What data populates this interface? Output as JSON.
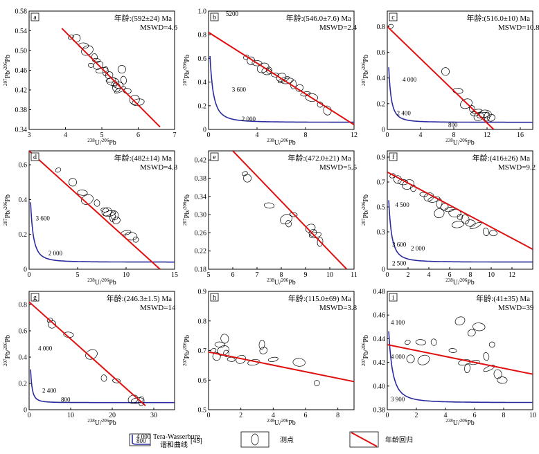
{
  "chart_data": [
    {
      "id": "a",
      "type": "scatter",
      "panel_label": "a",
      "age": "年龄:(592±24) Ma",
      "mswd": "MSWD=4.6",
      "xlim": [
        3,
        7
      ],
      "ylim": [
        0.34,
        0.58
      ],
      "xticks": [
        3,
        4,
        5,
        6,
        7
      ],
      "yticks": [
        0.34,
        0.38,
        0.42,
        0.46,
        0.5,
        0.54,
        0.58
      ],
      "ytick_labels": [
        "0.34",
        "0.38",
        "0.42",
        "0.46",
        "0.50",
        "0.54",
        "0.58"
      ],
      "xlabel": "238U/206Pb",
      "ylabel": "207Pb/206Pb",
      "regression": [
        [
          3.9,
          0.545
        ],
        [
          6.6,
          0.345
        ]
      ],
      "concordia": false,
      "concordia_labels": [],
      "points": [
        [
          4.15,
          0.527
        ],
        [
          4.3,
          0.525
        ],
        [
          4.5,
          0.51
        ],
        [
          4.6,
          0.5
        ],
        [
          4.8,
          0.487
        ],
        [
          4.85,
          0.48
        ],
        [
          4.9,
          0.47
        ],
        [
          5.0,
          0.46
        ],
        [
          5.1,
          0.458
        ],
        [
          5.2,
          0.45
        ],
        [
          5.25,
          0.44
        ],
        [
          5.3,
          0.437
        ],
        [
          5.35,
          0.432
        ],
        [
          5.4,
          0.425
        ],
        [
          5.45,
          0.43
        ],
        [
          5.5,
          0.42
        ],
        [
          5.6,
          0.44
        ],
        [
          5.7,
          0.418
        ],
        [
          5.9,
          0.4
        ],
        [
          6.0,
          0.395
        ],
        [
          4.7,
          0.47
        ],
        [
          5.55,
          0.462
        ]
      ]
    },
    {
      "id": "b",
      "type": "scatter",
      "panel_label": "b",
      "age": "年龄:(546.0±7.6) Ma",
      "mswd": "MSWD=2.4",
      "xlim": [
        0,
        12
      ],
      "ylim": [
        0,
        1.0
      ],
      "xticks": [
        0,
        4,
        8,
        12
      ],
      "yticks": [
        0,
        0.2,
        0.4,
        0.6,
        0.8,
        1.0
      ],
      "ytick_labels": [
        "0",
        "0.2",
        "0.4",
        "0.6",
        "0.8",
        "1.0"
      ],
      "xlabel": "238U/206Pb",
      "ylabel": "207Pb/206Pb",
      "regression": [
        [
          0,
          0.82
        ],
        [
          12,
          0.04
        ]
      ],
      "concordia": true,
      "concordia_labels": [
        [
          "5200",
          1.2,
          0.96
        ],
        [
          "3 600",
          1.7,
          0.32
        ],
        [
          "2 000",
          2.5,
          0.07
        ]
      ],
      "points": [
        [
          3.1,
          0.61
        ],
        [
          3.5,
          0.58
        ],
        [
          4.0,
          0.56
        ],
        [
          4.5,
          0.52
        ],
        [
          5.0,
          0.5
        ],
        [
          5.5,
          0.46
        ],
        [
          6.0,
          0.44
        ],
        [
          6.5,
          0.41
        ],
        [
          7.0,
          0.38
        ],
        [
          7.5,
          0.35
        ],
        [
          8.0,
          0.3
        ],
        [
          8.5,
          0.27
        ],
        [
          9.2,
          0.21
        ],
        [
          9.8,
          0.16
        ],
        [
          4.8,
          0.49
        ],
        [
          6.2,
          0.42
        ]
      ]
    },
    {
      "id": "c",
      "type": "scatter",
      "panel_label": "c",
      "age": "年龄:(516.0±10) Ma",
      "mswd": "MSWD=10.8",
      "xlim": [
        0,
        17.5
      ],
      "ylim": [
        0,
        0.92
      ],
      "xticks": [
        0,
        4,
        8,
        12,
        16
      ],
      "yticks": [
        0,
        0.2,
        0.4,
        0.6,
        0.8
      ],
      "ytick_labels": [
        "0",
        "0.2",
        "0.4",
        "0.6",
        "0.8"
      ],
      "xlabel": "238U/206Pb",
      "ylabel": "207Pb/206Pb",
      "regression": [
        [
          0,
          0.8
        ],
        [
          12.8,
          0.0
        ]
      ],
      "concordia": true,
      "concordia_labels": [
        [
          "4 000",
          1.5,
          0.37
        ],
        [
          "2 400",
          0.8,
          0.11
        ],
        [
          "800",
          7.0,
          0.02
        ]
      ],
      "points": [
        [
          0.4,
          0.8
        ],
        [
          7.0,
          0.45
        ],
        [
          8.5,
          0.3
        ],
        [
          9.5,
          0.2
        ],
        [
          10.2,
          0.16
        ],
        [
          10.5,
          0.12
        ],
        [
          11.0,
          0.1
        ],
        [
          11.5,
          0.11
        ],
        [
          12.0,
          0.1
        ],
        [
          12.5,
          0.09
        ],
        [
          10.8,
          0.14
        ],
        [
          11.8,
          0.12
        ]
      ]
    },
    {
      "id": "d",
      "type": "scatter",
      "panel_label": "d",
      "age": "年龄:(482±14) Ma",
      "mswd": "MSWD=4.8",
      "xlim": [
        0,
        15
      ],
      "ylim": [
        0,
        0.68
      ],
      "xticks": [
        0,
        5,
        10,
        15
      ],
      "yticks": [
        0,
        0.2,
        0.4,
        0.6
      ],
      "ytick_labels": [
        "0",
        "0.2",
        "0.4",
        "0.6"
      ],
      "xlabel": "238U/206Pb",
      "ylabel": "207Pb/206Pb",
      "regression": [
        [
          0,
          0.68
        ],
        [
          13.5,
          0.0
        ]
      ],
      "concordia": true,
      "concordia_labels": [
        [
          "3 600",
          0.4,
          0.28
        ],
        [
          "2 000",
          1.7,
          0.08
        ]
      ],
      "points": [
        [
          3.0,
          0.57
        ],
        [
          4.5,
          0.5
        ],
        [
          5.5,
          0.44
        ],
        [
          6.0,
          0.4
        ],
        [
          7.0,
          0.38
        ],
        [
          7.8,
          0.34
        ],
        [
          8.0,
          0.33
        ],
        [
          8.3,
          0.32
        ],
        [
          8.6,
          0.3
        ],
        [
          9.0,
          0.28
        ],
        [
          10.0,
          0.21
        ],
        [
          10.5,
          0.19
        ],
        [
          11.0,
          0.17
        ],
        [
          8.8,
          0.31
        ]
      ]
    },
    {
      "id": "e",
      "type": "scatter",
      "panel_label": "e",
      "age": "年龄:(472.0±21) Ma",
      "mswd": "MSWD=5.5",
      "xlim": [
        5,
        11
      ],
      "ylim": [
        0.18,
        0.44
      ],
      "xticks": [
        5,
        6,
        7,
        8,
        9,
        10,
        11
      ],
      "yticks": [
        0.18,
        0.22,
        0.26,
        0.3,
        0.34,
        0.38,
        0.42
      ],
      "ytick_labels": [
        "0.18",
        "0.22",
        "0.26",
        "0.30",
        "0.34",
        "0.38",
        "0.42"
      ],
      "xlabel": "238U/206Pb",
      "ylabel": "207Pb/206Pb",
      "regression": [
        [
          6.0,
          0.44
        ],
        [
          10.7,
          0.18
        ]
      ],
      "concordia": false,
      "concordia_labels": [],
      "points": [
        [
          6.5,
          0.39
        ],
        [
          6.6,
          0.38
        ],
        [
          7.5,
          0.32
        ],
        [
          8.2,
          0.29
        ],
        [
          8.3,
          0.28
        ],
        [
          8.5,
          0.3
        ],
        [
          9.2,
          0.27
        ],
        [
          9.4,
          0.255
        ],
        [
          9.6,
          0.24
        ],
        [
          9.3,
          0.26
        ]
      ]
    },
    {
      "id": "f",
      "type": "scatter",
      "panel_label": "f",
      "age": "年龄:(416±26) Ma",
      "mswd": "MSWD=9.2",
      "xlim": [
        0,
        14
      ],
      "ylim": [
        0,
        0.95
      ],
      "xticks": [
        0,
        2,
        4,
        6,
        8,
        10,
        12
      ],
      "yticks": [
        0,
        0.3,
        0.5,
        0.7,
        0.9
      ],
      "ytick_labels": [
        "0",
        "0.3",
        "0.5",
        "0.7",
        "0.9"
      ],
      "xlabel": "238U/206Pb",
      "ylabel": "207Pb/206Pb",
      "regression": [
        [
          0,
          0.78
        ],
        [
          14,
          0.16
        ]
      ],
      "concordia": true,
      "concordia_labels": [
        [
          "4 500",
          0.5,
          0.5
        ],
        [
          "3 600",
          0.2,
          0.18
        ],
        [
          "2 000",
          2.0,
          0.15
        ],
        [
          "2 500",
          0.2,
          0.03
        ]
      ],
      "points": [
        [
          0.5,
          0.75
        ],
        [
          1.0,
          0.72
        ],
        [
          1.5,
          0.7
        ],
        [
          2.0,
          0.68
        ],
        [
          2.5,
          0.65
        ],
        [
          3.5,
          0.6
        ],
        [
          4.0,
          0.58
        ],
        [
          4.5,
          0.56
        ],
        [
          5.0,
          0.53
        ],
        [
          5.5,
          0.5
        ],
        [
          6.0,
          0.48
        ],
        [
          6.5,
          0.45
        ],
        [
          7.0,
          0.42
        ],
        [
          7.5,
          0.4
        ],
        [
          8.0,
          0.37
        ],
        [
          8.5,
          0.35
        ],
        [
          9.5,
          0.3
        ],
        [
          10.2,
          0.29
        ],
        [
          5.0,
          0.45
        ],
        [
          6.8,
          0.36
        ]
      ]
    },
    {
      "id": "g",
      "type": "scatter",
      "panel_label": "g",
      "age": "年龄:(246.3±1.5) Ma",
      "mswd": "MSWD=14",
      "xlim": [
        0,
        35
      ],
      "ylim": [
        0,
        0.9
      ],
      "xticks": [
        0,
        10,
        20,
        30
      ],
      "yticks": [
        0,
        0.2,
        0.4,
        0.6,
        0.8
      ],
      "ytick_labels": [
        "0",
        "0.2",
        "0.4",
        "0.6",
        "0.8"
      ],
      "xlabel": "238U/206Pb",
      "ylabel": "207Pb/206Pb",
      "regression": [
        [
          0,
          0.82
        ],
        [
          28,
          0.03
        ]
      ],
      "concordia": true,
      "concordia_labels": [
        [
          "4 000",
          1.5,
          0.45
        ],
        [
          "2 400",
          2.5,
          0.13
        ],
        [
          "800",
          7.0,
          0.06
        ]
      ],
      "points": [
        [
          5.0,
          0.68
        ],
        [
          5.5,
          0.65
        ],
        [
          9.5,
          0.57
        ],
        [
          15.0,
          0.42
        ],
        [
          18.0,
          0.24
        ],
        [
          21.0,
          0.22
        ],
        [
          25.0,
          0.08
        ],
        [
          26.0,
          0.07
        ],
        [
          27.0,
          0.065
        ]
      ]
    },
    {
      "id": "h",
      "type": "scatter",
      "panel_label": "h",
      "age": "年龄:(115.0±69) Ma",
      "mswd": "MSWD=3.8",
      "xlim": [
        0,
        9
      ],
      "ylim": [
        0.5,
        0.9
      ],
      "xticks": [
        0,
        2,
        4,
        6,
        8
      ],
      "yticks": [
        0.5,
        0.6,
        0.7,
        0.8,
        0.9
      ],
      "ytick_labels": [
        "0.5",
        "0.6",
        "0.7",
        "0.8",
        "0.9"
      ],
      "xlabel": "238U/206Pb",
      "ylabel": "207Pb/206Pb",
      "regression": [
        [
          0,
          0.695
        ],
        [
          9,
          0.595
        ]
      ],
      "concordia": false,
      "concordia_labels": [],
      "points": [
        [
          0.3,
          0.7
        ],
        [
          0.5,
          0.68
        ],
        [
          0.7,
          0.72
        ],
        [
          0.9,
          0.7
        ],
        [
          1.1,
          0.69
        ],
        [
          1.4,
          0.67
        ],
        [
          2.0,
          0.67
        ],
        [
          2.8,
          0.66
        ],
        [
          3.3,
          0.72
        ],
        [
          3.4,
          0.7
        ],
        [
          4.0,
          0.67
        ],
        [
          5.6,
          0.66
        ],
        [
          6.7,
          0.59
        ],
        [
          1.0,
          0.74
        ]
      ]
    },
    {
      "id": "i",
      "type": "scatter",
      "panel_label": "i",
      "age": "年龄:(41±35) Ma",
      "mswd": "MSWD=39",
      "xlim": [
        0,
        10
      ],
      "ylim": [
        0.38,
        0.48
      ],
      "xticks": [
        0,
        2,
        4,
        6,
        8,
        10
      ],
      "yticks": [
        0.38,
        0.4,
        0.42,
        0.44,
        0.46,
        0.48
      ],
      "ytick_labels": [
        "0.38",
        "0.40",
        "0.42",
        "0.44",
        "0.46",
        "0.48"
      ],
      "xlabel": "238U/206Pb",
      "ylabel": "207Pb/206Pb",
      "regression": [
        [
          0,
          0.435
        ],
        [
          10,
          0.41
        ]
      ],
      "concordia": true,
      "concordia_labels": [
        [
          "4 100",
          0.05,
          0.452
        ],
        [
          "4 000",
          0.05,
          0.423
        ],
        [
          "3 900",
          0.05,
          0.387
        ]
      ],
      "points": [
        [
          1.4,
          0.437
        ],
        [
          1.6,
          0.423
        ],
        [
          2.3,
          0.437
        ],
        [
          2.5,
          0.422
        ],
        [
          3.2,
          0.437
        ],
        [
          4.5,
          0.43
        ],
        [
          5.0,
          0.455
        ],
        [
          5.3,
          0.42
        ],
        [
          5.5,
          0.415
        ],
        [
          5.8,
          0.445
        ],
        [
          6.0,
          0.42
        ],
        [
          6.3,
          0.45
        ],
        [
          7.2,
          0.435
        ],
        [
          7.6,
          0.41
        ],
        [
          7.9,
          0.405
        ],
        [
          7.0,
          0.415
        ],
        [
          6.8,
          0.425
        ]
      ]
    }
  ],
  "legend": {
    "concordia_title": "Tera-Wasserburg",
    "concordia_sub": "谐和曲线",
    "concordia_ref": "[45]",
    "concordia_ticks": [
      "4 000",
      "800"
    ],
    "points_label": "测点",
    "regression_label": "年龄回归"
  },
  "colors": {
    "regression": "#e01010",
    "concordia": "#2a2a9e",
    "ellipse": "#000000"
  }
}
